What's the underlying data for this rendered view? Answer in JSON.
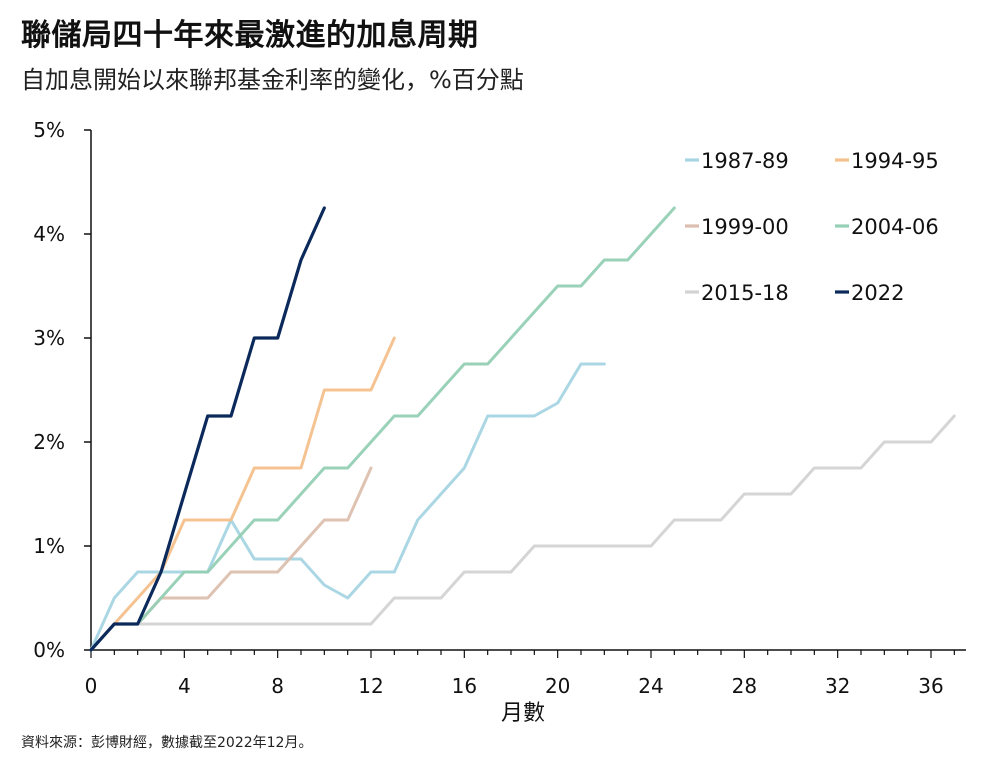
{
  "title": "聯儲局四十年來最激進的加息周期",
  "subtitle": "自加息開始以來聯邦基金利率的變化，%百分點",
  "source": "資料來源：彭博財經，數據截至2022年12月。",
  "chart_data": {
    "type": "line",
    "title": "聯儲局四十年來最激進的加息周期",
    "subtitle": "自加息開始以來聯邦基金利率的變化，%百分點",
    "xlabel": "月數",
    "ylabel": "",
    "xlim": [
      0,
      37.5
    ],
    "ylim": [
      0,
      5
    ],
    "x_ticks": [
      0,
      4,
      8,
      12,
      16,
      20,
      24,
      28,
      32,
      36
    ],
    "x_tick_labels": [
      "0",
      "4",
      "8",
      "12",
      "16",
      "20",
      "24",
      "28",
      "32",
      "36"
    ],
    "y_ticks": [
      0,
      1,
      2,
      3,
      4,
      5
    ],
    "y_tick_labels": [
      "0%",
      "1%",
      "2%",
      "3%",
      "4%",
      "5%"
    ],
    "grid": false,
    "legend_position": "top-right",
    "series": [
      {
        "name": "1987-89",
        "color": "#a7d5e3",
        "x": [
          0,
          1,
          2,
          3,
          4,
          5,
          6,
          7,
          8,
          9,
          10,
          11,
          12,
          13,
          14,
          15,
          16,
          17,
          18,
          19,
          20,
          21,
          22
        ],
        "values": [
          0,
          0.5,
          0.75,
          0.75,
          0.75,
          0.75,
          1.25,
          0.875,
          0.875,
          0.875,
          0.625,
          0.5,
          0.75,
          0.75,
          1.25,
          1.5,
          1.75,
          2.25,
          2.25,
          2.25,
          2.375,
          2.75,
          2.75
        ]
      },
      {
        "name": "1994-95",
        "color": "#f4c08c",
        "x": [
          0,
          1,
          2,
          3,
          4,
          5,
          6,
          7,
          8,
          9,
          10,
          11,
          12,
          13
        ],
        "values": [
          0,
          0.25,
          0.5,
          0.75,
          1.25,
          1.25,
          1.25,
          1.75,
          1.75,
          1.75,
          2.5,
          2.5,
          2.5,
          3.0
        ]
      },
      {
        "name": "1999-00",
        "color": "#dcbfae",
        "x": [
          0,
          1,
          2,
          3,
          4,
          5,
          6,
          7,
          8,
          9,
          10,
          11,
          12
        ],
        "values": [
          0,
          0.25,
          0.25,
          0.5,
          0.5,
          0.5,
          0.75,
          0.75,
          0.75,
          1.0,
          1.25,
          1.25,
          1.75
        ]
      },
      {
        "name": "2004-06",
        "color": "#95cfb5",
        "x": [
          0,
          1,
          2,
          3,
          4,
          5,
          6,
          7,
          8,
          9,
          10,
          11,
          12,
          13,
          14,
          15,
          16,
          17,
          18,
          19,
          20,
          21,
          22,
          23,
          24,
          25
        ],
        "values": [
          0,
          0.25,
          0.25,
          0.5,
          0.75,
          0.75,
          1.0,
          1.25,
          1.25,
          1.5,
          1.75,
          1.75,
          2.0,
          2.25,
          2.25,
          2.5,
          2.75,
          2.75,
          3.0,
          3.25,
          3.5,
          3.5,
          3.75,
          3.75,
          4.0,
          4.25
        ]
      },
      {
        "name": "2015-18",
        "color": "#d3d3d3",
        "x": [
          0,
          1,
          2,
          3,
          4,
          5,
          6,
          7,
          8,
          9,
          10,
          11,
          12,
          13,
          14,
          15,
          16,
          17,
          18,
          19,
          20,
          21,
          22,
          23,
          24,
          25,
          26,
          27,
          28,
          29,
          30,
          31,
          32,
          33,
          34,
          35,
          36,
          37
        ],
        "values": [
          0,
          0.25,
          0.25,
          0.25,
          0.25,
          0.25,
          0.25,
          0.25,
          0.25,
          0.25,
          0.25,
          0.25,
          0.25,
          0.5,
          0.5,
          0.5,
          0.75,
          0.75,
          0.75,
          1.0,
          1.0,
          1.0,
          1.0,
          1.0,
          1.0,
          1.25,
          1.25,
          1.25,
          1.5,
          1.5,
          1.5,
          1.75,
          1.75,
          1.75,
          2.0,
          2.0,
          2.0,
          2.25
        ]
      },
      {
        "name": "2022",
        "color": "#0b2a5b",
        "x": [
          0,
          1,
          2,
          3,
          4,
          5,
          6,
          7,
          8,
          9,
          10
        ],
        "values": [
          0,
          0.25,
          0.25,
          0.75,
          1.5,
          2.25,
          2.25,
          3.0,
          3.0,
          3.75,
          4.25
        ]
      }
    ]
  }
}
